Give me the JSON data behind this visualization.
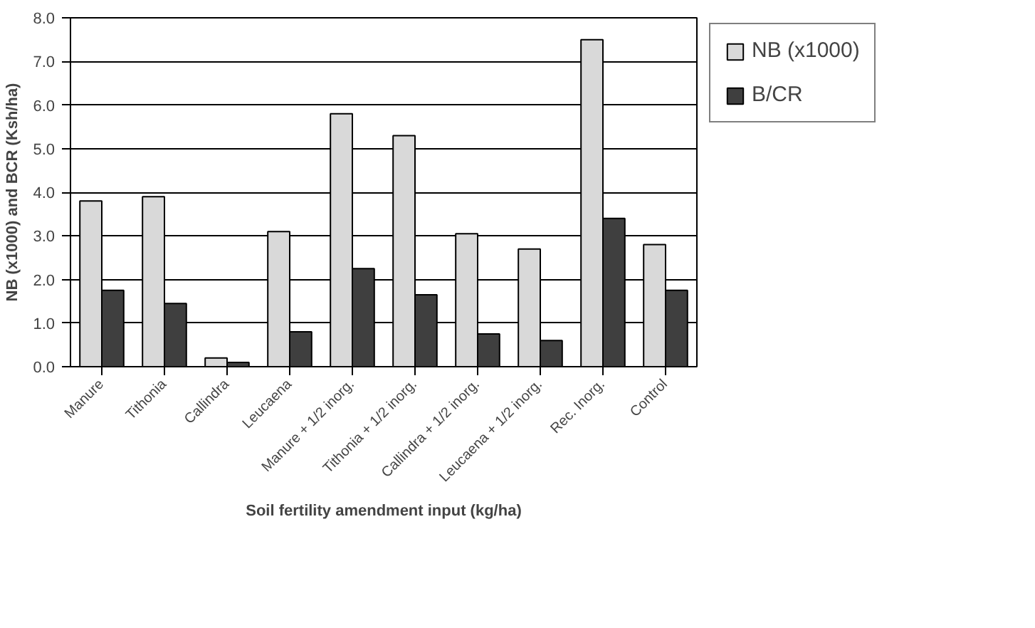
{
  "chart_data": {
    "type": "bar",
    "xlabel": "Soil fertility amendment input (kg/ha)",
    "ylabel": "NB (x1000) and BCR (Ksh/ha)",
    "categories": [
      "Manure",
      "Tithonia",
      "Callindra",
      "Leucaena",
      "Manure + 1/2 inorg.",
      "Tithonia + 1/2 inorg.",
      "Callindra + 1/2 inorg.",
      "Leucaena + 1/2 inorg.",
      "Rec. Inorg.",
      "Control"
    ],
    "series": [
      {
        "name": "NB (x1000)",
        "color": "#d9d9d9",
        "values": [
          3.8,
          3.9,
          0.2,
          3.1,
          5.8,
          5.3,
          3.05,
          2.7,
          7.5,
          2.8
        ]
      },
      {
        "name": "B/CR",
        "color": "#3f3f3f",
        "values": [
          1.75,
          1.45,
          0.1,
          0.8,
          2.25,
          1.65,
          0.75,
          0.6,
          3.4,
          1.75
        ]
      }
    ],
    "ylim": [
      0,
      8
    ],
    "yticks": [
      {
        "value": 0,
        "label": "0.0"
      },
      {
        "value": 1,
        "label": "1.0"
      },
      {
        "value": 2,
        "label": "2.0"
      },
      {
        "value": 3,
        "label": "3.0"
      },
      {
        "value": 4,
        "label": "4.0"
      },
      {
        "value": 5,
        "label": "5.0"
      },
      {
        "value": 6,
        "label": "6.0"
      },
      {
        "value": 7,
        "label": "7.0"
      },
      {
        "value": 8,
        "label": "8.0"
      }
    ],
    "grid": "y",
    "legend": "right"
  }
}
